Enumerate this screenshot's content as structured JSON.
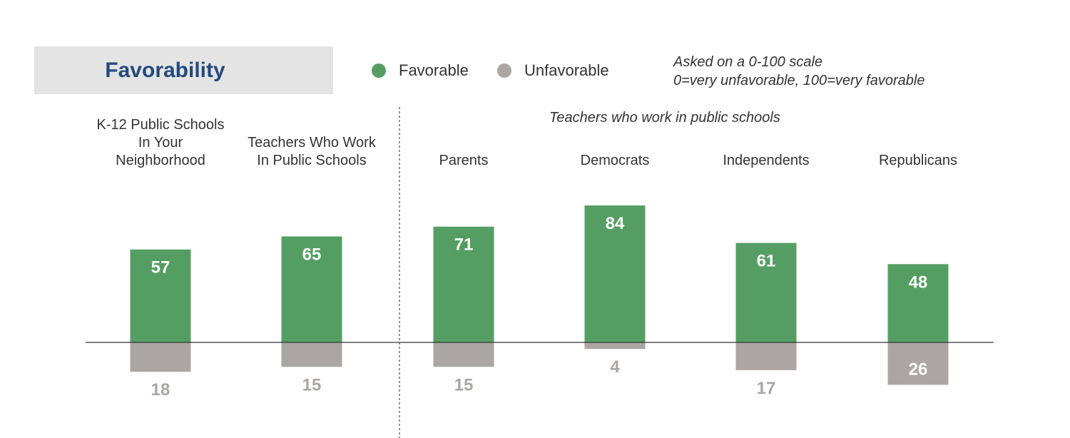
{
  "chart_data": {
    "type": "bar",
    "title": "Favorability",
    "subtitle": "Teachers who work in public schools",
    "note": [
      "Asked on a 0-100 scale",
      "0=very unfavorable, 100=very favorable"
    ],
    "categories": [
      [
        "K-12 Public Schools",
        "In Your",
        "Neighborhood"
      ],
      [
        "Teachers Who Work",
        "In Public Schools"
      ],
      [
        "Parents"
      ],
      [
        "Democrats"
      ],
      [
        "Independents"
      ],
      [
        "Republicans"
      ]
    ],
    "series": [
      {
        "name": "Favorable",
        "color": "#559e63",
        "values": [
          57,
          65,
          71,
          84,
          61,
          48
        ]
      },
      {
        "name": "Unfavorable",
        "color": "#aba6a4",
        "values": [
          18,
          15,
          15,
          4,
          17,
          26
        ]
      }
    ],
    "ylim": [
      -30,
      100
    ],
    "legend": "top"
  }
}
